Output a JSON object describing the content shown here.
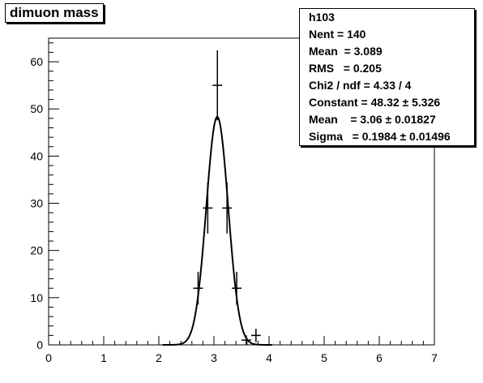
{
  "title": "dimuon mass",
  "stats": {
    "name": "h103",
    "nent": "Nent = 140",
    "mean": "Mean  = 3.089",
    "rms": "RMS   = 0.205",
    "chi2": "Chi2 / ndf = 4.33 / 4",
    "constant": "Constant = 48.32 ± 5.326",
    "fit_mean": "Mean    = 3.06 ± 0.01827",
    "sigma": "Sigma   = 0.1984 ± 0.01496"
  },
  "chart_data": {
    "type": "scatter",
    "title": "dimuon mass",
    "xlabel": "",
    "ylabel": "",
    "xlim": [
      0,
      7
    ],
    "ylim": [
      0,
      65
    ],
    "x_ticks": [
      "0",
      "1",
      "2",
      "3",
      "4",
      "5",
      "6",
      "7"
    ],
    "y_ticks": [
      "0",
      "10",
      "20",
      "30",
      "40",
      "50",
      "60"
    ],
    "bin_width": 0.175,
    "grid": false,
    "series": [
      {
        "values": [
          {
            "x": 2.7125,
            "y": 12,
            "err": 3.46
          },
          {
            "x": 2.8875,
            "y": 29,
            "err": 5.39
          },
          {
            "x": 3.0625,
            "y": 55,
            "err": 7.42
          },
          {
            "x": 3.2375,
            "y": 29,
            "err": 5.39
          },
          {
            "x": 3.4125,
            "y": 12,
            "err": 3.46
          },
          {
            "x": 3.5875,
            "y": 1,
            "err": 1.0
          },
          {
            "x": 3.7625,
            "y": 2,
            "err": 1.41
          }
        ]
      }
    ],
    "fit": {
      "type": "gaus",
      "constant": 48.32,
      "mean": 3.06,
      "sigma": 0.1984
    }
  }
}
